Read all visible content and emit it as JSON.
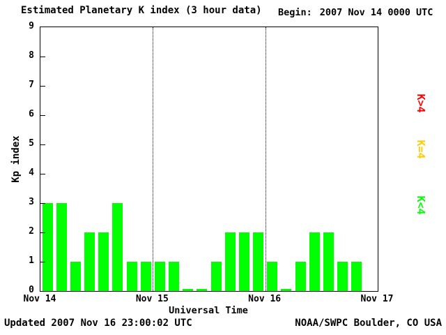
{
  "header": {
    "title": "Estimated Planetary K index (3 hour data)",
    "begin_label": "Begin:",
    "begin_value": "2007 Nov 14 0000 UTC"
  },
  "footer": {
    "updated": "Updated 2007 Nov 16 23:00:02 UTC",
    "source": "NOAA/SWPC Boulder, CO USA"
  },
  "legend": {
    "position": "right",
    "items": [
      {
        "label": "K>4",
        "color": "#ff0000",
        "name": "legend-k-greater-4"
      },
      {
        "label": "K=4",
        "color": "#ffcc00",
        "name": "legend-k-equal-4"
      },
      {
        "label": "K<4",
        "color": "#00ff00",
        "name": "legend-k-less-4"
      }
    ]
  },
  "chart_data": {
    "type": "bar",
    "title": "Estimated Planetary K index (3 hour data)",
    "xlabel": "Universal Time",
    "ylabel": "Kp index",
    "ylim": [
      0,
      9
    ],
    "y_ticks": [
      0,
      1,
      2,
      3,
      4,
      5,
      6,
      7,
      8,
      9
    ],
    "x_tick_labels": [
      "Nov 14",
      "Nov 15",
      "Nov 16",
      "Nov 17"
    ],
    "days": 3,
    "bars_per_day": 8,
    "interval_hours": 3,
    "bar_color": "#00ff00",
    "grid": "dotted vertical lines at interior day boundaries",
    "legend_position": "right",
    "values": [
      3,
      3,
      1,
      2,
      2,
      3,
      1,
      1,
      1,
      1,
      0,
      0,
      1,
      2,
      2,
      2,
      1,
      0,
      1,
      2,
      2,
      1,
      1
    ]
  }
}
